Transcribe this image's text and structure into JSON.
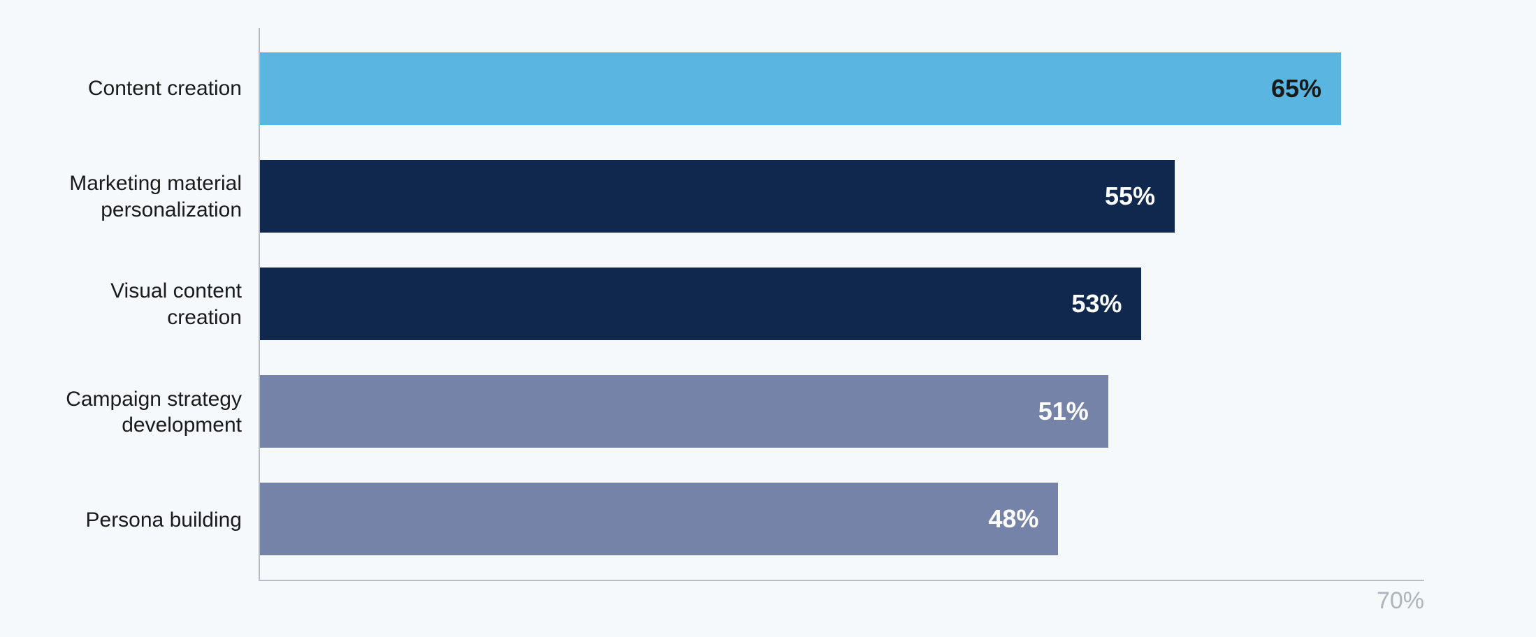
{
  "chart": {
    "type": "bar-horizontal",
    "background_color": "#f5f9fb",
    "axis_color": "#b9bec4",
    "label_color": "#1a1a1a",
    "label_fontsize": 30,
    "value_fontsize": 36,
    "xmax_label": "70%",
    "xmax_label_color": "#aeb4bb",
    "xlim": [
      0,
      70
    ],
    "label_col_width": 310,
    "bars": [
      {
        "label": "Content creation",
        "value": 65,
        "value_text": "65%",
        "bar_color": "#5ab6e0",
        "value_color": "#1a1a1a"
      },
      {
        "label": "Marketing material personalization",
        "value": 55,
        "value_text": "55%",
        "bar_color": "#10284e",
        "value_color": "#ffffff"
      },
      {
        "label": "Visual content creation",
        "value": 53,
        "value_text": "53%",
        "bar_color": "#10284e",
        "value_color": "#ffffff"
      },
      {
        "label": "Campaign strategy development",
        "value": 51,
        "value_text": "51%",
        "bar_color": "#7683a8",
        "value_color": "#ffffff"
      },
      {
        "label": "Persona building",
        "value": 48,
        "value_text": "48%",
        "bar_color": "#7683a8",
        "value_color": "#ffffff"
      }
    ]
  }
}
